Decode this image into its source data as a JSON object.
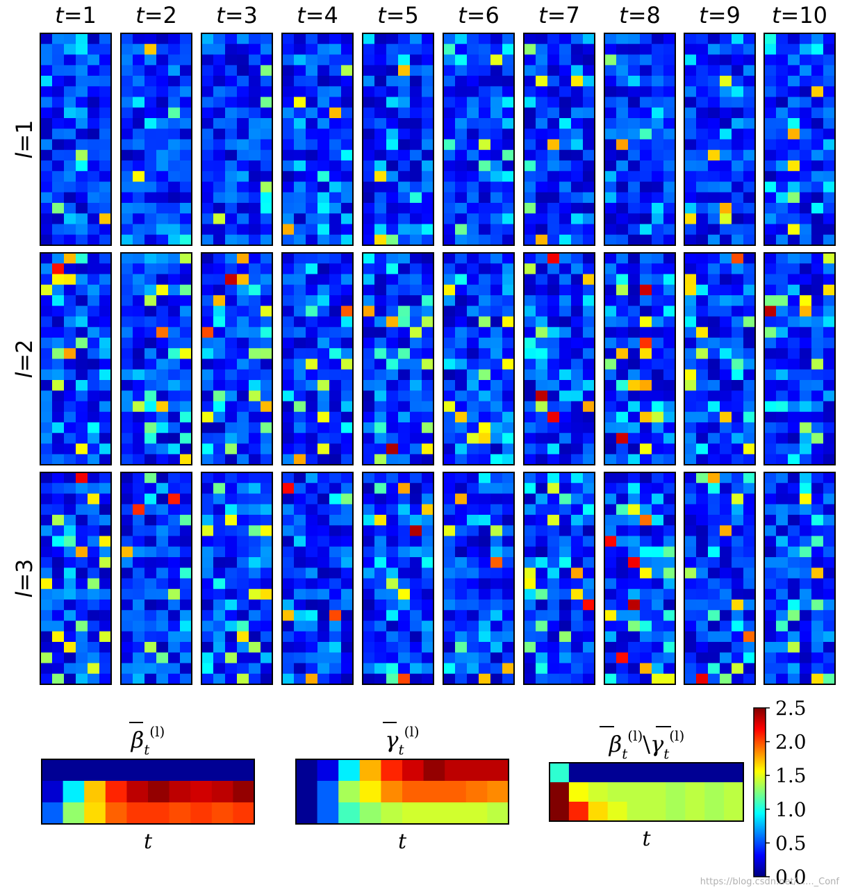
{
  "figure": {
    "col_labels": [
      "t=1",
      "t=2",
      "t=3",
      "t=4",
      "t=5",
      "t=6",
      "t=7",
      "t=8",
      "t=9",
      "t=10"
    ],
    "row_labels": [
      "l=1",
      "l=2",
      "l=3"
    ],
    "watermark": "https://blog.csdn.net/......_Conf"
  },
  "chart_data": [
    {
      "type": "heatmap",
      "title": "",
      "grid_panels": {
        "rows": 3,
        "cols": 10,
        "cells_per_panel": {
          "rows": 20,
          "cols": 6
        }
      },
      "note_values": "per-cell values are random-looking attention weights, mostly 0.3–0.8 with sparse peaks up to ~2.3",
      "vmin": 0.0,
      "vmax": 2.5
    },
    {
      "type": "heatmap",
      "title": "β̄_t^(l)",
      "xlabel": "t",
      "x": [
        1,
        2,
        3,
        4,
        5,
        6,
        7,
        8,
        9,
        10
      ],
      "rows": [
        [
          0.05,
          0.05,
          0.05,
          0.05,
          0.05,
          0.05,
          0.05,
          0.05,
          0.05,
          0.05
        ],
        [
          0.2,
          0.9,
          1.7,
          2.1,
          2.35,
          2.45,
          2.35,
          2.3,
          2.35,
          2.45
        ],
        [
          0.55,
          1.3,
          1.65,
          1.95,
          2.05,
          2.05,
          2.0,
          2.05,
          2.0,
          2.05
        ]
      ]
    },
    {
      "type": "heatmap",
      "title": "γ̄_t^(l)",
      "xlabel": "t",
      "x": [
        1,
        2,
        3,
        4,
        5,
        6,
        7,
        8,
        9,
        10
      ],
      "rows": [
        [
          0.05,
          0.25,
          0.9,
          1.75,
          2.1,
          2.3,
          2.45,
          2.35,
          2.35,
          2.35
        ],
        [
          0.05,
          0.55,
          1.35,
          1.6,
          1.85,
          1.95,
          1.95,
          1.95,
          1.9,
          1.85
        ],
        [
          0.05,
          0.55,
          1.1,
          1.3,
          1.4,
          1.45,
          1.45,
          1.45,
          1.45,
          1.4
        ]
      ]
    },
    {
      "type": "heatmap",
      "title": "β̄_t^(l) \\ γ̄_t^(l)",
      "xlabel": "t",
      "x": [
        1,
        2,
        3,
        4,
        5,
        6,
        7,
        8,
        9,
        10
      ],
      "rows": [
        [
          1.05,
          0.05,
          0.05,
          0.05,
          0.05,
          0.05,
          0.05,
          0.05,
          0.05,
          0.05
        ],
        [
          2.5,
          1.55,
          1.45,
          1.4,
          1.4,
          1.4,
          1.35,
          1.4,
          1.35,
          1.4
        ],
        [
          2.5,
          2.1,
          1.65,
          1.5,
          1.4,
          1.4,
          1.35,
          1.4,
          1.35,
          1.4
        ]
      ]
    },
    {
      "type": "colorbar",
      "colormap": "jet",
      "vmin": 0.0,
      "vmax": 2.5,
      "ticks": [
        "0.0",
        "0.5",
        "1.0",
        "1.5",
        "2.0",
        "2.5"
      ]
    }
  ]
}
